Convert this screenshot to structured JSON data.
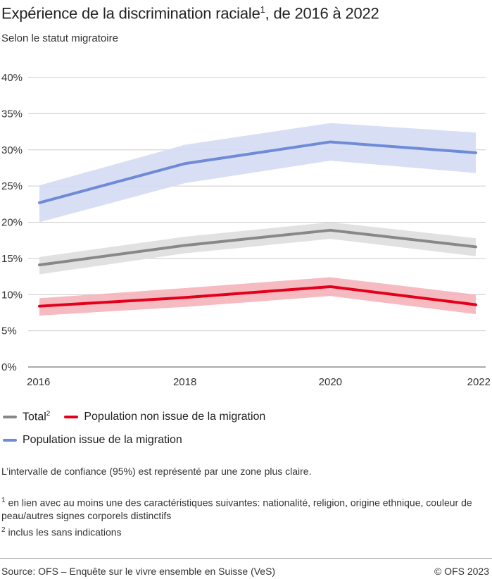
{
  "title": "Expérience de la discrimination raciale",
  "title_sup": "1",
  "title_suffix": ", de 2016 à 2022",
  "subtitle": "Selon le statut migratoire",
  "chart_data": {
    "type": "line",
    "x": [
      2016,
      2018,
      2020,
      2022
    ],
    "xticks": [
      "2016",
      "2018",
      "2020",
      "2022"
    ],
    "ylim": [
      0,
      40
    ],
    "yticks": [
      "0%",
      "5%",
      "10%",
      "15%",
      "20%",
      "25%",
      "30%",
      "35%",
      "40%"
    ],
    "grid": true,
    "legend_placement": "bottom",
    "series": [
      {
        "name": "Population issue de la migration",
        "color": "#6f8bd8",
        "band_color": "#d4dcf3",
        "values": [
          22.7,
          28.1,
          31.1,
          29.6
        ],
        "lower": [
          20.0,
          25.4,
          28.5,
          26.8
        ],
        "upper": [
          25.1,
          30.7,
          33.7,
          32.4
        ]
      },
      {
        "name": "Total",
        "name_sup": "2",
        "color": "#888888",
        "band_color": "#dedede",
        "values": [
          14.1,
          16.8,
          18.9,
          16.6
        ],
        "lower": [
          12.8,
          15.7,
          17.7,
          15.3
        ],
        "upper": [
          15.2,
          18.0,
          20.0,
          17.8
        ]
      },
      {
        "name": "Population non issue de la migration",
        "color": "#e2001a",
        "band_color": "#f5b3ba",
        "values": [
          8.4,
          9.6,
          11.1,
          8.6
        ],
        "lower": [
          7.1,
          8.3,
          9.8,
          7.3
        ],
        "upper": [
          9.5,
          10.9,
          12.4,
          10.0
        ]
      }
    ]
  },
  "note": "L’intervalle de confiance (95%) est représenté par une zone plus claire.",
  "footnotes": [
    {
      "num": "1",
      "text": "en lien avec au moins une des caractéristiques suivantes: nationalité, religion, origine ethnique, couleur de peau/autres signes corporels distinctifs"
    },
    {
      "num": "2",
      "text": "inclus les sans indications"
    }
  ],
  "source": "Source: OFS – Enquête sur le vivre ensemble en Suisse (VeS)",
  "copyright": "© OFS 2023"
}
